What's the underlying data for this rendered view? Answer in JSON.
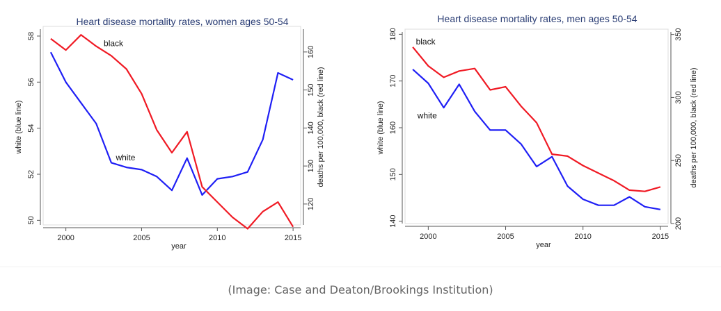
{
  "caption": "(Image: Case and Deaton/Brookings Institution)",
  "colors": {
    "white_series": "#1f1ff5",
    "black_series": "#f01a24",
    "title": "#2a3d74"
  },
  "chart_data": [
    {
      "type": "line",
      "title": "Heart disease mortality rates, women ages 50-54",
      "xlabel": "year",
      "ylabel_left": "white (blue line)",
      "ylabel_right": "deaths per 100,000, black (red line)",
      "xlim": [
        1998.5,
        2015.5
      ],
      "x_ticks": [
        2000,
        2005,
        2010,
        2015
      ],
      "y_left_lim": [
        49.8,
        58.3
      ],
      "y_left_ticks": [
        50,
        52,
        54,
        56,
        58
      ],
      "y_right_lim": [
        114.5,
        166
      ],
      "y_right_ticks": [
        120,
        130,
        140,
        150,
        160
      ],
      "grid": false,
      "x": [
        1999,
        2000,
        2001,
        2002,
        2003,
        2004,
        2005,
        2006,
        2007,
        2008,
        2009,
        2010,
        2011,
        2012,
        2013,
        2014,
        2015
      ],
      "series": [
        {
          "name": "white",
          "axis": "left",
          "values": [
            57.3,
            56.0,
            55.1,
            54.2,
            52.5,
            52.3,
            52.2,
            51.9,
            51.3,
            52.7,
            51.1,
            51.8,
            51.9,
            52.1,
            53.5,
            56.4,
            56.1
          ]
        },
        {
          "name": "black",
          "axis": "right",
          "values": [
            163.5,
            160.5,
            164.5,
            161.5,
            159.0,
            155.5,
            149.0,
            139.5,
            133.5,
            139.0,
            124.5,
            120.5,
            116.5,
            113.5,
            118.0,
            120.5,
            114.0
          ]
        }
      ],
      "annotations": [
        {
          "text": "black",
          "x": 2002.5,
          "y": 161.5,
          "axis": "right"
        },
        {
          "text": "white",
          "x": 2003.3,
          "y": 52.6,
          "axis": "left"
        }
      ]
    },
    {
      "type": "line",
      "title": "Heart disease mortality rates, men ages 50-54",
      "xlabel": "year",
      "ylabel_left": "white (blue line)",
      "ylabel_right": "deaths per 100,000, black (red line)",
      "xlim": [
        1998.5,
        2015.5
      ],
      "x_ticks": [
        2000,
        2005,
        2010,
        2015
      ],
      "y_left_lim": [
        139.5,
        180.5
      ],
      "y_left_ticks": [
        140,
        150,
        160,
        170,
        180
      ],
      "y_right_lim": [
        200,
        352
      ],
      "y_right_ticks": [
        200,
        250,
        300,
        350
      ],
      "grid": false,
      "x": [
        1999,
        2000,
        2001,
        2002,
        2003,
        2004,
        2005,
        2006,
        2007,
        2008,
        2009,
        2010,
        2011,
        2012,
        2013,
        2014,
        2015
      ],
      "series": [
        {
          "name": "white",
          "axis": "left",
          "values": [
            172.5,
            169.5,
            164.3,
            169.3,
            163.5,
            159.5,
            159.5,
            156.5,
            151.7,
            153.8,
            147.5,
            144.7,
            143.4,
            143.4,
            145.2,
            143.1,
            142.5
          ]
        },
        {
          "name": "black",
          "axis": "right",
          "values": [
            340.0,
            325.0,
            316.0,
            321.0,
            323.0,
            306.0,
            308.5,
            293.0,
            280.0,
            255.0,
            253.5,
            246.0,
            240.0,
            234.0,
            226.5,
            225.5,
            229.0
          ]
        }
      ],
      "annotations": [
        {
          "text": "black",
          "x": 1999.2,
          "y": 342.0,
          "axis": "right"
        },
        {
          "text": "white",
          "x": 1999.3,
          "y": 162.0,
          "axis": "left"
        }
      ]
    }
  ]
}
